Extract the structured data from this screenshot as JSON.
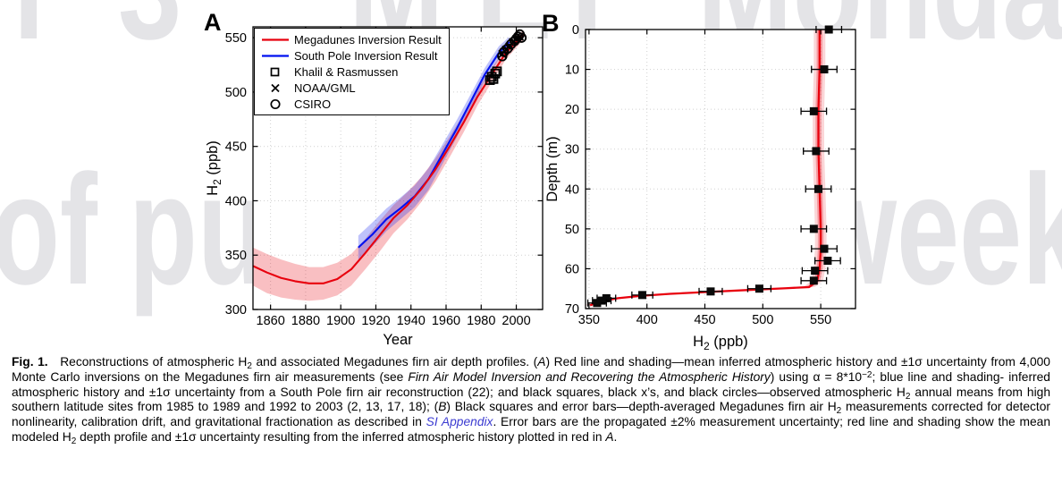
{
  "watermark": {
    "color": "#e4e4e7",
    "row1": [
      {
        "text": "nth",
        "x": -150
      },
      {
        "text": "3",
        "x": 132
      },
      {
        "text": "M ET",
        "x": 390
      },
      {
        "text": "Monday",
        "x": 780
      }
    ],
    "row2": [
      {
        "text": "of pu",
        "x": -10
      },
      {
        "text": "week",
        "x": 905
      }
    ]
  },
  "chart_data": [
    {
      "id": "A",
      "panel_label": "A",
      "type": "line",
      "xlabel": "Year",
      "ylabel": "H2 (ppb)",
      "ylabel_segments": [
        {
          "t": "H"
        },
        {
          "t": "2",
          "sub": true
        },
        {
          "t": " (ppb)"
        }
      ],
      "xlim": [
        1850,
        2015
      ],
      "ylim": [
        300,
        560
      ],
      "xticks": [
        1860,
        1880,
        1900,
        1920,
        1940,
        1960,
        1980,
        2000
      ],
      "yticks": [
        300,
        350,
        400,
        450,
        500,
        550
      ],
      "grid": true,
      "legend_position": "top-left",
      "series": [
        {
          "name": "Megadunes Inversion Result",
          "color": "#e8000d",
          "x": [
            1850,
            1858,
            1866,
            1874,
            1882,
            1890,
            1898,
            1906,
            1914,
            1922,
            1930,
            1938,
            1946,
            1954,
            1962,
            1970,
            1978,
            1986,
            1994,
            2004
          ],
          "y": [
            340,
            334,
            329,
            326,
            324,
            324,
            328,
            337,
            352,
            368,
            384,
            396,
            411,
            429,
            450,
            472,
            496,
            516,
            536,
            553
          ],
          "band_lo": [
            322,
            315,
            311,
            309,
            308,
            309,
            313,
            322,
            337,
            353,
            370,
            383,
            399,
            418,
            440,
            463,
            488,
            509,
            530,
            548
          ],
          "band_hi": [
            357,
            351,
            346,
            342,
            339,
            339,
            343,
            351,
            365,
            381,
            396,
            408,
            422,
            439,
            459,
            480,
            503,
            522,
            541,
            557
          ]
        },
        {
          "name": "South Pole Inversion Result",
          "color": "#0010f0",
          "x": [
            1910,
            1918,
            1926,
            1934,
            1942,
            1950,
            1958,
            1966,
            1974,
            1982,
            1990,
            1996
          ],
          "y": [
            357,
            369,
            383,
            393,
            404,
            420,
            443,
            466,
            491,
            516,
            536,
            546
          ],
          "band_lo": [
            346,
            358,
            372,
            383,
            394,
            410,
            434,
            458,
            484,
            510,
            530,
            541
          ],
          "band_hi": [
            368,
            380,
            393,
            403,
            414,
            430,
            452,
            474,
            498,
            522,
            542,
            551
          ]
        }
      ],
      "scatter": [
        {
          "name": "Khalil & Rasmussen",
          "marker": "square",
          "x": [
            1985,
            1986,
            1987,
            1988,
            1989
          ],
          "y": [
            511,
            514,
            512,
            517,
            519
          ]
        },
        {
          "name": "NOAA/GML",
          "marker": "x",
          "x": [
            1992,
            1994,
            1996,
            1998,
            2000,
            2002
          ],
          "y": [
            535,
            539,
            542,
            546,
            549,
            551
          ]
        },
        {
          "name": "CSIRO",
          "marker": "circle",
          "x": [
            1992,
            1993,
            1995,
            1997,
            1999,
            2000,
            2001,
            2002,
            2003
          ],
          "y": [
            533,
            537,
            540,
            544,
            547,
            549,
            551,
            553,
            550
          ]
        }
      ]
    },
    {
      "id": "B",
      "panel_label": "B",
      "type": "line+scatter",
      "xlabel": "H2 (ppb)",
      "xlabel_segments": [
        {
          "t": "H"
        },
        {
          "t": "2",
          "sub": true
        },
        {
          "t": " (ppb)"
        }
      ],
      "ylabel": "Depth (m)",
      "xlim": [
        347,
        580
      ],
      "ylim": [
        0,
        70
      ],
      "y_inverted": true,
      "xticks": [
        350,
        400,
        450,
        500,
        550
      ],
      "yticks": [
        0,
        10,
        20,
        30,
        40,
        50,
        60,
        70
      ],
      "grid": true,
      "model_line": {
        "name": "Modeled H2 depth profile",
        "color": "#e8000d",
        "band_ppb": 5,
        "h2": [
          549,
          549,
          548,
          548,
          549,
          550,
          550,
          549,
          547,
          540,
          520,
          490,
          455,
          420,
          395,
          375,
          363,
          355,
          351
        ],
        "depth": [
          0,
          10,
          20,
          30,
          40,
          50,
          55,
          60,
          63,
          64.6,
          64.9,
          65.3,
          65.8,
          66.3,
          66.8,
          67.4,
          68,
          68.7,
          69.2
        ]
      },
      "measurements": {
        "name": "Megadunes firn air measurements",
        "marker": "filled-square",
        "xerr_label": "±2%",
        "h2": [
          557,
          553,
          544,
          546,
          548,
          544,
          553,
          556,
          545,
          544,
          497,
          455,
          396,
          365,
          361,
          357
        ],
        "depth": [
          0,
          10,
          20.5,
          30.5,
          40,
          50,
          55,
          58,
          60.5,
          63,
          65,
          65.7,
          66.6,
          67.4,
          68,
          68.6
        ],
        "xerr": [
          11,
          11,
          11,
          11,
          11,
          11,
          11,
          11,
          11,
          11,
          10,
          10,
          9,
          8,
          8,
          8
        ]
      }
    }
  ],
  "caption": {
    "segments": [
      {
        "t": "Fig. 1.",
        "style": "bold"
      },
      {
        "t": "   Reconstructions of atmospheric H"
      },
      {
        "t": "2",
        "style": "sub"
      },
      {
        "t": " and associated Megadunes firn air depth profiles. ("
      },
      {
        "t": "A",
        "style": "italic"
      },
      {
        "t": ") Red line and shading—mean inferred atmospheric history and ±1σ uncertainty from 4,000 Monte Carlo inversions on the Megadunes firn air measurements (see "
      },
      {
        "t": "Firn Air Model Inversion and Recovering the Atmospheric History",
        "style": "italic"
      },
      {
        "t": ") using α = 8*10"
      },
      {
        "t": "−2",
        "style": "sup"
      },
      {
        "t": "; blue line and shading- inferred atmospheric history and ±1σ uncertainty from a South Pole firn air reconstruction (22); and black squares, black x’s, and black circles—observed atmospheric H"
      },
      {
        "t": "2",
        "style": "sub"
      },
      {
        "t": " annual means from high southern latitude sites from 1985 to 1989 and 1992 to 2003 (2, 13, 17, 18); ("
      },
      {
        "t": "B",
        "style": "italic"
      },
      {
        "t": ") Black squares and error bars—depth-averaged Megadunes firn air H"
      },
      {
        "t": "2",
        "style": "sub"
      },
      {
        "t": " measurements corrected for detector nonlinearity, calibration drift, and gravitational fractionation as described in "
      },
      {
        "t": "SI Appendix",
        "style": "italic-link"
      },
      {
        "t": ". Error bars are the propagated ±2% measurement uncertainty; red line and shading show the mean modeled H"
      },
      {
        "t": "2",
        "style": "sub"
      },
      {
        "t": " depth profile and ±1σ uncertainty resulting from the inferred atmospheric history plotted in red in "
      },
      {
        "t": "A",
        "style": "italic"
      },
      {
        "t": "."
      }
    ]
  }
}
